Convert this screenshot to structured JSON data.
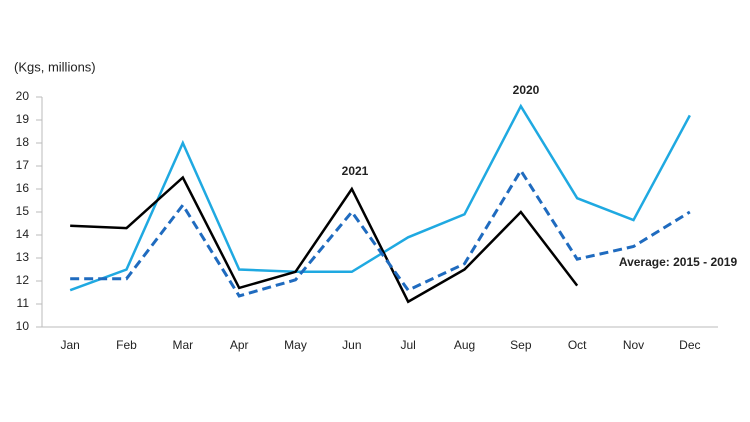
{
  "chart_data": {
    "type": "line",
    "y_label": "(Kgs, millions)",
    "categories": [
      "Jan",
      "Feb",
      "Mar",
      "Apr",
      "May",
      "Jun",
      "Jul",
      "Aug",
      "Sep",
      "Oct",
      "Nov",
      "Dec"
    ],
    "series": [
      {
        "name": "2020",
        "color": "#1fa9e1",
        "dash": false,
        "values": [
          11.6,
          12.5,
          18.0,
          12.5,
          12.4,
          12.4,
          13.9,
          14.9,
          19.6,
          15.6,
          14.65,
          19.2
        ]
      },
      {
        "name": "2021",
        "color": "#000000",
        "dash": false,
        "values": [
          14.4,
          14.3,
          16.5,
          11.7,
          12.4,
          16.0,
          11.1,
          12.5,
          15.0,
          11.8,
          null,
          null
        ]
      },
      {
        "name": "Average: 2015 - 2019",
        "color": "#1f6bbf",
        "dash": true,
        "values": [
          12.1,
          12.1,
          15.3,
          11.35,
          12.05,
          15.0,
          11.6,
          12.75,
          16.8,
          12.95,
          13.5,
          15.0
        ]
      }
    ],
    "ylim": [
      10,
      20
    ],
    "yticks": [
      10,
      11,
      12,
      13,
      14,
      15,
      16,
      17,
      18,
      19,
      20
    ],
    "grid": false
  }
}
